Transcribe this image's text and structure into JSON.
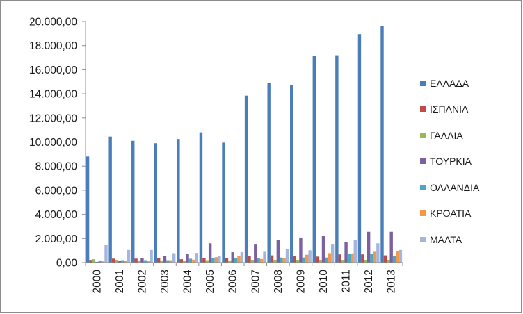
{
  "chart_data": {
    "type": "bar",
    "title": "",
    "xlabel": "",
    "ylabel": "",
    "ylim": [
      0,
      20000
    ],
    "y_ticks": [
      "0,00",
      "2.000,00",
      "4.000,00",
      "6.000,00",
      "8.000,00",
      "10.000,00",
      "12.000,00",
      "14.000,00",
      "16.000,00",
      "18.000,00",
      "20.000,00"
    ],
    "grid": false,
    "legend_position": "right",
    "categories": [
      "2000",
      "2001",
      "2002",
      "2003",
      "2004",
      "2005",
      "2006",
      "2007",
      "2008",
      "2009",
      "2010",
      "2011",
      "2012",
      "2013"
    ],
    "series": [
      {
        "name": "ΕΛΛΑΔΑ",
        "color": "#4a7ebb",
        "values": [
          8800,
          10450,
          10100,
          9900,
          10250,
          10800,
          9950,
          13850,
          14900,
          14700,
          17150,
          17200,
          18950,
          19600
        ]
      },
      {
        "name": "ΙΣΠΑΝΙΑ",
        "color": "#be4b48",
        "values": [
          220,
          330,
          330,
          380,
          280,
          380,
          380,
          560,
          600,
          560,
          500,
          680,
          680,
          600
        ]
      },
      {
        "name": "ΓΑΛΛΙΑ",
        "color": "#98b954",
        "values": [
          280,
          230,
          180,
          180,
          160,
          200,
          180,
          230,
          230,
          230,
          230,
          230,
          230,
          230
        ]
      },
      {
        "name": "ΤΟΥΡΚΙΑ",
        "color": "#7d60a0",
        "values": [
          60,
          150,
          350,
          560,
          750,
          1600,
          860,
          1550,
          1900,
          2080,
          2200,
          1680,
          2550,
          2550
        ]
      },
      {
        "name": "ΟΛΛΑΝΔΙΑ",
        "color": "#46aac5",
        "values": [
          180,
          200,
          200,
          200,
          320,
          400,
          400,
          380,
          420,
          420,
          420,
          700,
          720,
          560
        ]
      },
      {
        "name": "ΚΡΟΑΤΙΑ",
        "color": "#f79646",
        "values": [
          100,
          120,
          150,
          200,
          240,
          450,
          560,
          300,
          380,
          650,
          780,
          760,
          900,
          960
        ]
      },
      {
        "name": "ΜΑΛΤΑ",
        "color": "#a5b6de",
        "values": [
          1450,
          1050,
          1050,
          780,
          800,
          580,
          860,
          900,
          1150,
          1020,
          1550,
          1900,
          1600,
          1050
        ]
      }
    ]
  }
}
